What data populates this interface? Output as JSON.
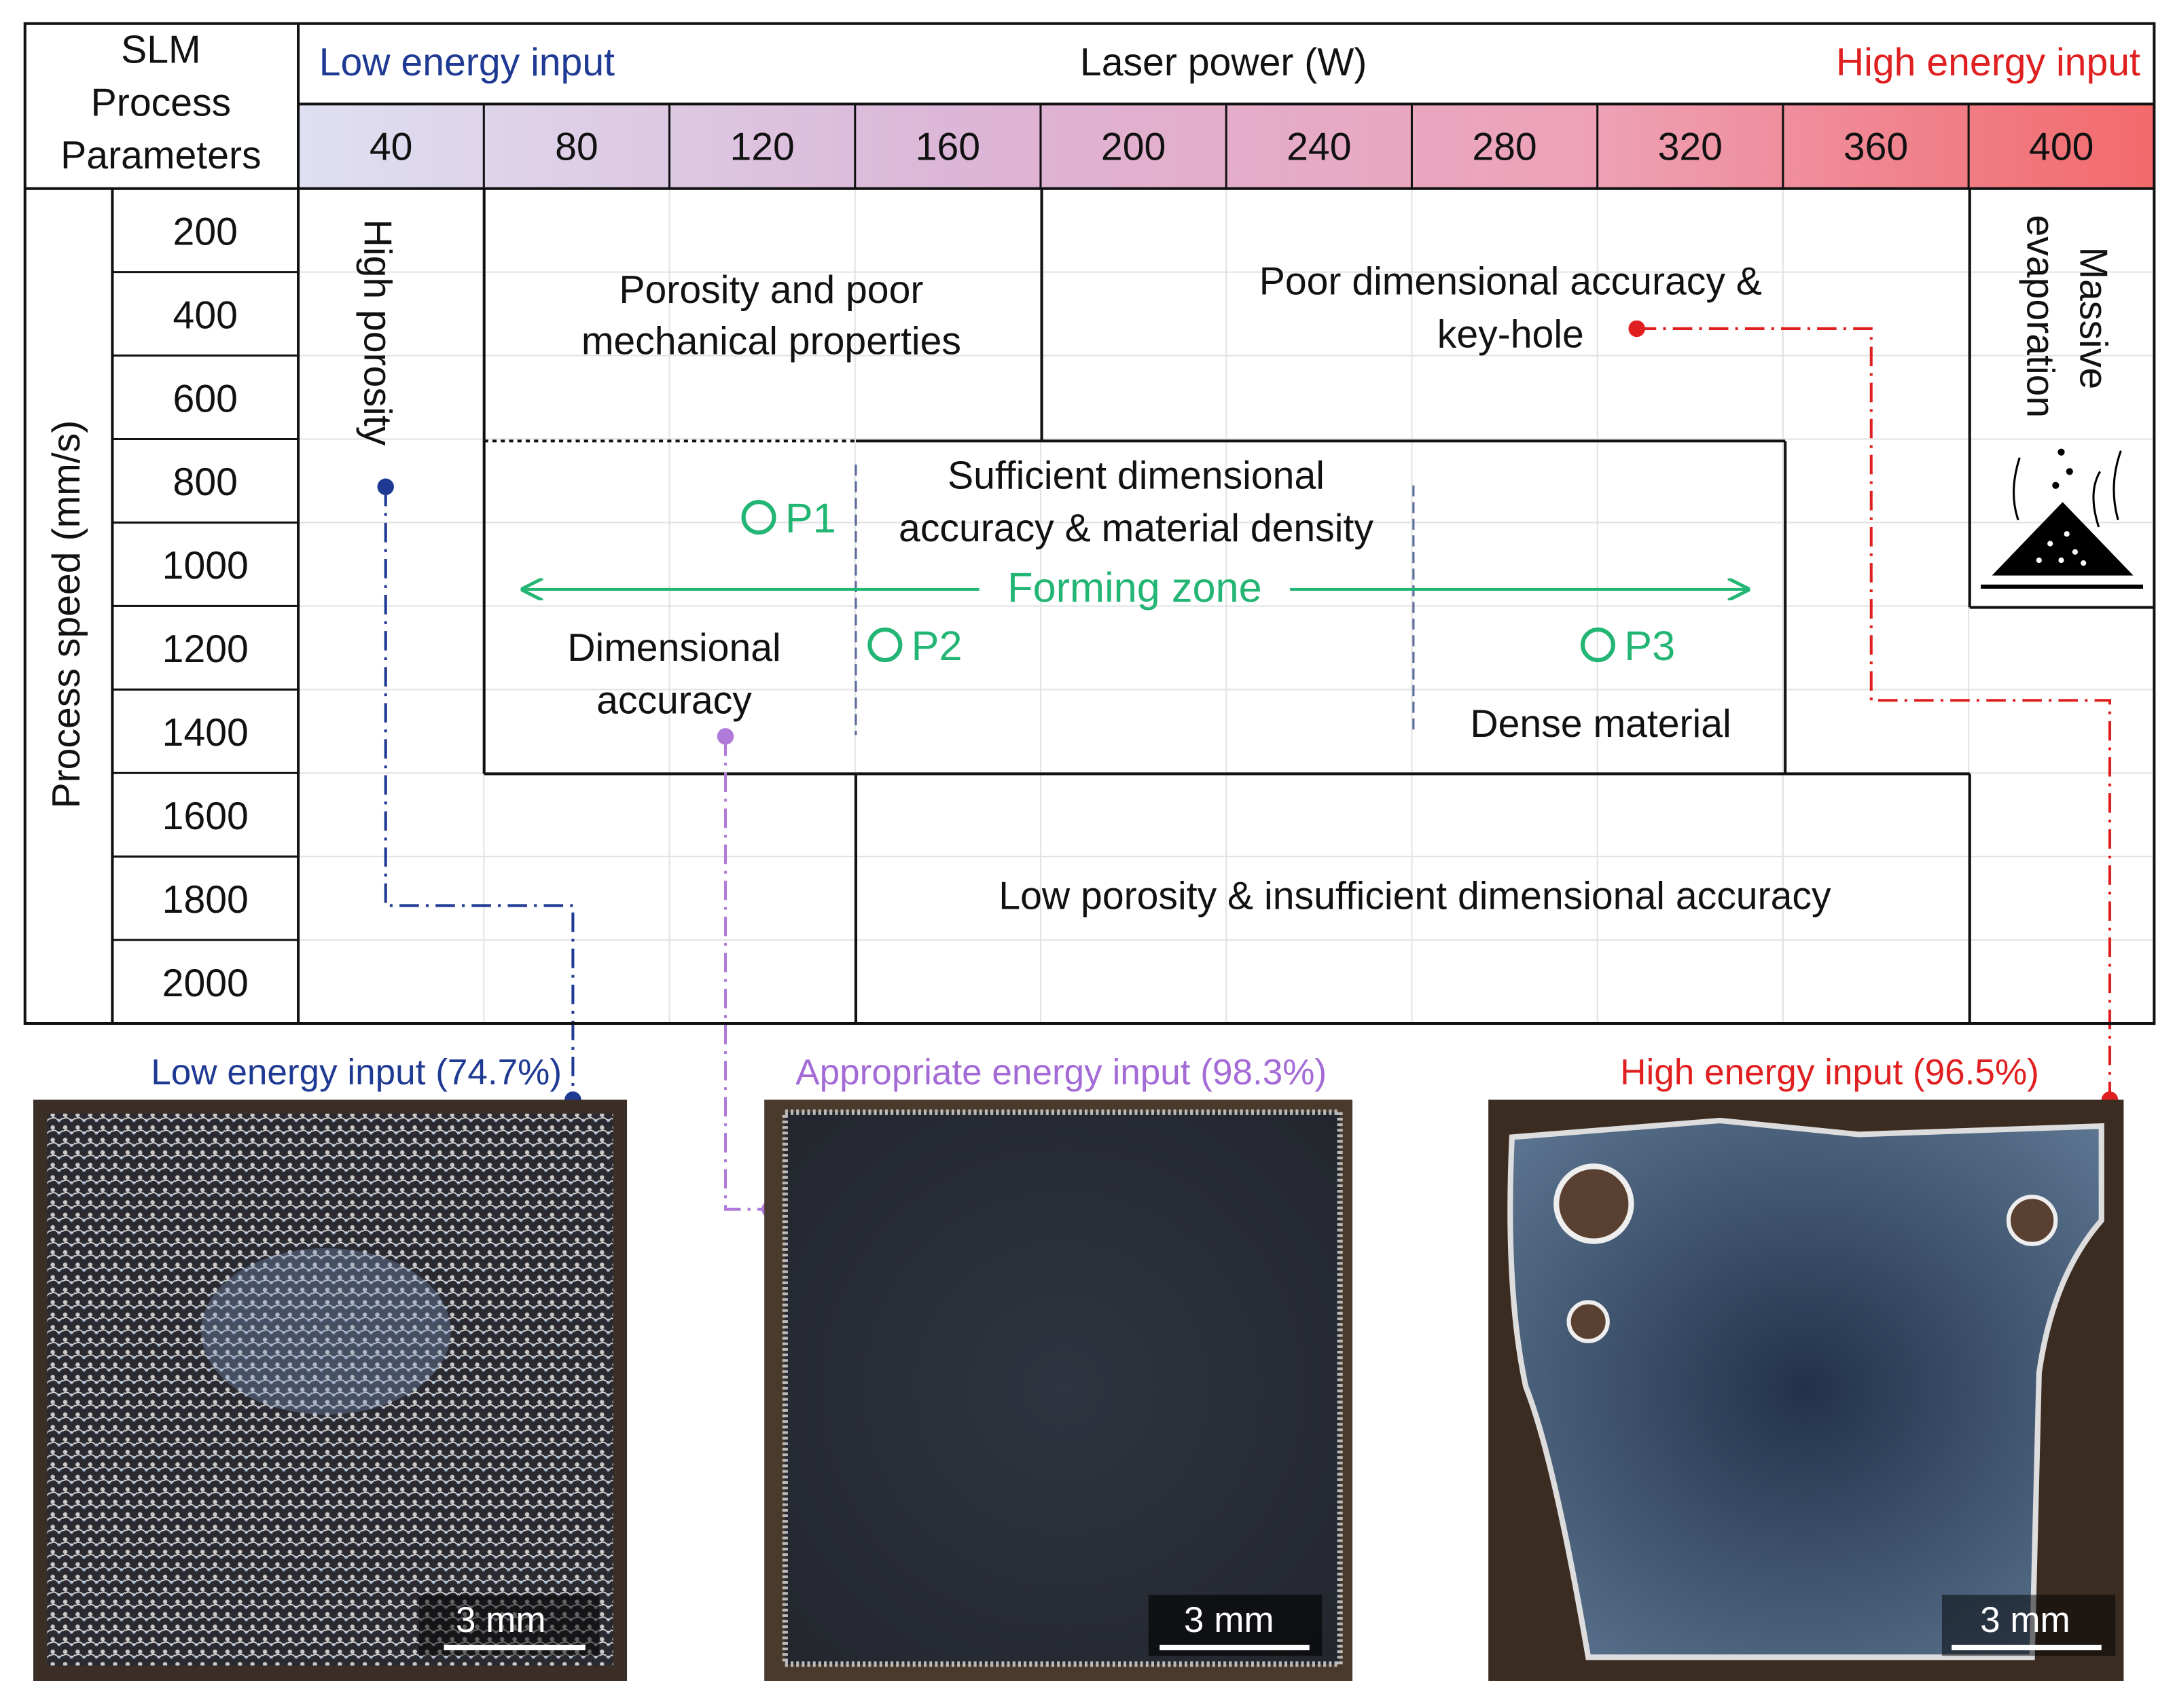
{
  "header": {
    "corner": [
      "SLM",
      "Process",
      "Parameters"
    ],
    "low_energy": "Low energy input",
    "x_title": "Laser power (W)",
    "high_energy": "High energy input"
  },
  "laser_power": [
    40,
    80,
    120,
    160,
    200,
    240,
    280,
    320,
    360,
    400
  ],
  "speed_title": "Process speed (mm/s)",
  "process_speed": [
    200,
    400,
    600,
    800,
    1000,
    1200,
    1400,
    1600,
    1800,
    2000
  ],
  "regions": {
    "high_porosity": "High porosity",
    "porosity_poor": [
      "Porosity and poor",
      "mechanical properties"
    ],
    "poor_accuracy": [
      "Poor dimensional accuracy &",
      "key-hole"
    ],
    "massive": [
      "Massive",
      "evaporation"
    ],
    "sufficient": [
      "Sufficient dimensional",
      "accuracy & material density"
    ],
    "forming_zone": "Forming zone",
    "dimensional": [
      "Dimensional",
      "accuracy"
    ],
    "dense": "Dense material",
    "low_porosity": "Low porosity & insufficient dimensional accuracy"
  },
  "points": [
    "P1",
    "P2",
    "P3"
  ],
  "samples": [
    {
      "caption": "Low energy input (74.7%)",
      "scale_bar": "3 mm"
    },
    {
      "caption": "Appropriate energy input (98.3%)",
      "scale_bar": "3 mm"
    },
    {
      "caption": "High energy input (96.5%)",
      "scale_bar": "3 mm"
    }
  ]
}
